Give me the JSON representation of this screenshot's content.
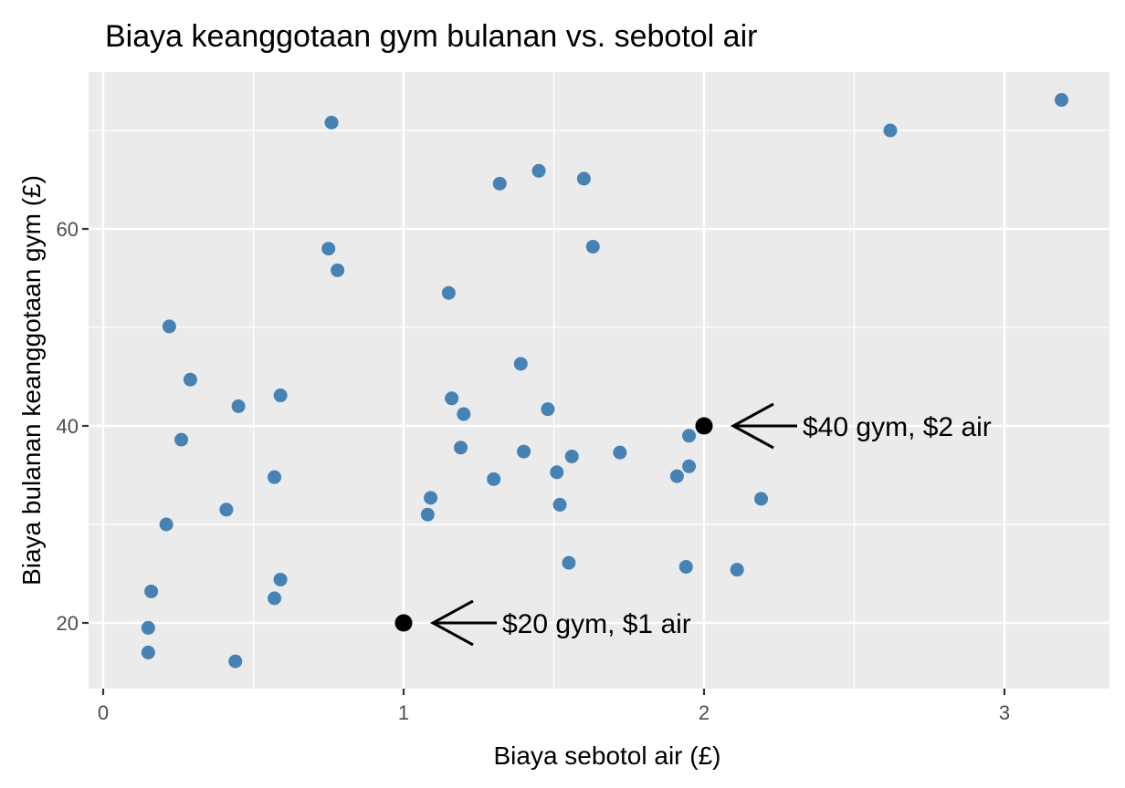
{
  "chart_data": {
    "type": "scatter",
    "title": "Biaya keanggotaan gym bulanan vs. sebotol air",
    "xlabel": "Biaya sebotol air (£)",
    "ylabel": "Biaya bulanan keanggotaan gym (£)",
    "xlim": [
      0,
      3.35
    ],
    "ylim": [
      13.5,
      75
    ],
    "x_ticks": [
      0,
      1,
      2,
      3
    ],
    "x_tick_labels": [
      "0",
      "1",
      "2",
      "3"
    ],
    "y_ticks": [
      20,
      40,
      60
    ],
    "y_tick_labels": [
      "20",
      "40",
      "60"
    ],
    "grid": true,
    "point_color": "#4682B4",
    "series": [
      {
        "name": "data",
        "x": [
          0.76,
          2.62,
          3.19,
          1.32,
          1.45,
          1.6,
          0.75,
          0.78,
          1.63,
          1.15,
          0.22,
          0.29,
          1.39,
          0.45,
          0.59,
          1.16,
          1.2,
          1.48,
          0.26,
          0.57,
          0.41,
          0.21,
          1.19,
          1.4,
          1.56,
          1.72,
          1.95,
          1.51,
          1.3,
          1.95,
          1.91,
          1.09,
          1.08,
          1.52,
          2.19,
          1.55,
          1.94,
          2.11,
          0.16,
          0.59,
          0.57,
          0.15,
          0.15,
          0.44
        ],
        "y": [
          70.8,
          70.0,
          73.1,
          64.6,
          65.9,
          65.1,
          58.0,
          55.8,
          58.2,
          53.5,
          50.1,
          44.7,
          46.3,
          42.0,
          43.1,
          42.8,
          41.2,
          41.7,
          38.6,
          34.8,
          31.5,
          30.0,
          37.8,
          37.4,
          36.9,
          37.3,
          39.0,
          35.3,
          34.6,
          35.9,
          34.9,
          32.7,
          31.0,
          32.0,
          32.6,
          26.1,
          25.7,
          25.4,
          23.2,
          24.4,
          22.5,
          19.5,
          17.0,
          16.1
        ]
      },
      {
        "name": "highlighted",
        "color": "#000000",
        "x": [
          1,
          2
        ],
        "y": [
          20,
          40
        ]
      }
    ],
    "annotations": [
      {
        "text": "$20 gym, $1 air",
        "x": 1,
        "y": 20,
        "arrow": true
      },
      {
        "text": "$40 gym, $2 air",
        "x": 2,
        "y": 40,
        "arrow": true
      }
    ]
  }
}
